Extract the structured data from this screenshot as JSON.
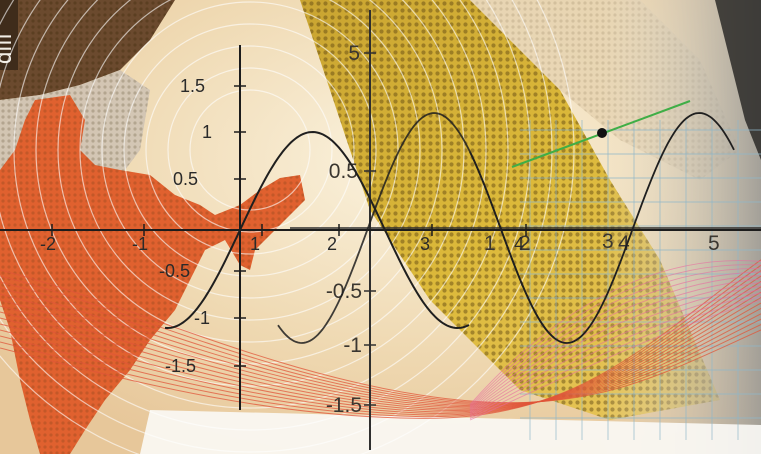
{
  "corner_fragment": "dIII",
  "front_axes": {
    "x_ticks": [
      "-2",
      "-1",
      "1",
      "2",
      "3",
      "4"
    ],
    "y_ticks": [
      "1.5",
      "1",
      "0.5",
      "-0.5",
      "-1",
      "-1.5"
    ]
  },
  "back_axes": {
    "x_ticks": [
      "1",
      "2",
      "3",
      "4",
      "5"
    ],
    "y_ticks": [
      "5",
      "0.5",
      "-0.5",
      "-1",
      "-1.5"
    ]
  },
  "curve_colors": {
    "sine": "#1f1f1f",
    "tangent": "#3fae46",
    "contour": "#e0563a",
    "grid": "#8fb7c9"
  }
}
